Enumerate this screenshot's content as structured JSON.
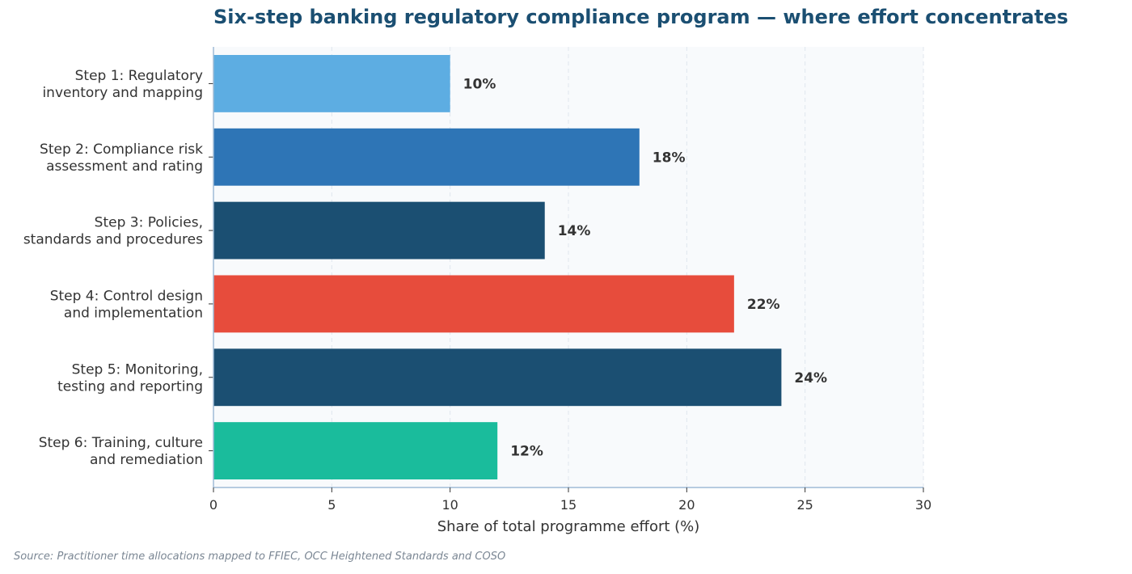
{
  "chart_data": {
    "type": "bar",
    "orientation": "horizontal",
    "title": "Six-step banking regulatory compliance program — where effort concentrates",
    "xlabel": "Share of total programme effort (%)",
    "ylabel": "",
    "xlim": [
      0,
      30
    ],
    "xticks": [
      0,
      5,
      10,
      15,
      20,
      25,
      30
    ],
    "grid": "vertical dashed",
    "categories": [
      [
        "Step 1: Regulatory",
        "inventory and mapping"
      ],
      [
        "Step 2: Compliance risk",
        "assessment and rating"
      ],
      [
        "Step 3: Policies,",
        "standards and procedures"
      ],
      [
        "Step 4: Control design",
        "and implementation"
      ],
      [
        "Step 5: Monitoring,",
        "testing and reporting"
      ],
      [
        "Step 6: Training, culture",
        "and remediation"
      ]
    ],
    "values": [
      10,
      18,
      14,
      22,
      24,
      12
    ],
    "value_labels": [
      "10%",
      "18%",
      "14%",
      "22%",
      "24%",
      "12%"
    ],
    "colors": [
      "#5dade2",
      "#2e75b6",
      "#1b4f72",
      "#e74c3c",
      "#1b4f72",
      "#1abc9c"
    ]
  },
  "source": "Source: Practitioner time allocations mapped to FFIEC, OCC Heightened Standards and COSO"
}
